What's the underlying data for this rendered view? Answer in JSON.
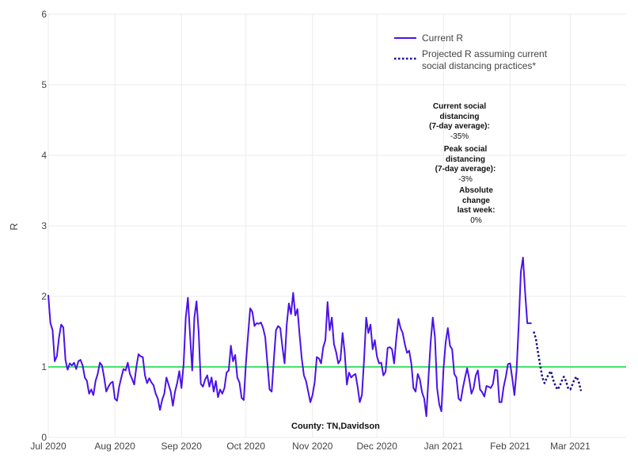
{
  "chart_data": {
    "type": "line",
    "xlabel": "",
    "ylabel": "R",
    "ylim": [
      0,
      6
    ],
    "xlim": [
      "2020-07-01",
      "2021-03-27"
    ],
    "y_ticks": [
      "0",
      "1",
      "2",
      "3",
      "4",
      "5",
      "6"
    ],
    "x_ticks": [
      {
        "date": "2020-07-01",
        "label": "Jul 2020"
      },
      {
        "date": "2020-08-01",
        "label": "Aug 2020"
      },
      {
        "date": "2020-09-01",
        "label": "Sep 2020"
      },
      {
        "date": "2020-10-01",
        "label": "Oct 2020"
      },
      {
        "date": "2020-11-01",
        "label": "Nov 2020"
      },
      {
        "date": "2020-12-01",
        "label": "Dec 2020"
      },
      {
        "date": "2021-01-01",
        "label": "Jan 2021"
      },
      {
        "date": "2021-02-01",
        "label": "Feb 2021"
      },
      {
        "date": "2021-03-01",
        "label": "Mar 2021"
      }
    ],
    "grid": true,
    "legend_position": "top-right",
    "reference_line": {
      "y": 1,
      "color": "#44e36a"
    },
    "series": [
      {
        "name": "Current R",
        "style": "solid",
        "color": "#4b12e8",
        "points": [
          [
            "2020-07-01",
            2.02
          ],
          [
            "2020-07-02",
            1.62
          ],
          [
            "2020-07-03",
            1.52
          ],
          [
            "2020-07-04",
            1.08
          ],
          [
            "2020-07-05",
            1.15
          ],
          [
            "2020-07-06",
            1.42
          ],
          [
            "2020-07-07",
            1.6
          ],
          [
            "2020-07-08",
            1.56
          ],
          [
            "2020-07-09",
            1.1
          ],
          [
            "2020-07-10",
            0.96
          ],
          [
            "2020-07-11",
            1.05
          ],
          [
            "2020-07-12",
            1.02
          ],
          [
            "2020-07-13",
            1.06
          ],
          [
            "2020-07-14",
            0.97
          ],
          [
            "2020-07-15",
            1.08
          ],
          [
            "2020-07-16",
            1.1
          ],
          [
            "2020-07-17",
            1.02
          ],
          [
            "2020-07-18",
            0.85
          ],
          [
            "2020-07-19",
            0.8
          ],
          [
            "2020-07-20",
            0.62
          ],
          [
            "2020-07-21",
            0.68
          ],
          [
            "2020-07-22",
            0.6
          ],
          [
            "2020-07-23",
            0.8
          ],
          [
            "2020-07-24",
            0.9
          ],
          [
            "2020-07-25",
            1.06
          ],
          [
            "2020-07-26",
            1.02
          ],
          [
            "2020-07-27",
            0.85
          ],
          [
            "2020-07-28",
            0.65
          ],
          [
            "2020-07-29",
            0.72
          ],
          [
            "2020-07-30",
            0.77
          ],
          [
            "2020-07-31",
            0.79
          ],
          [
            "2020-08-01",
            0.55
          ],
          [
            "2020-08-02",
            0.52
          ],
          [
            "2020-08-03",
            0.72
          ],
          [
            "2020-08-04",
            0.85
          ],
          [
            "2020-08-05",
            0.97
          ],
          [
            "2020-08-06",
            0.95
          ],
          [
            "2020-08-07",
            1.06
          ],
          [
            "2020-08-08",
            0.9
          ],
          [
            "2020-08-09",
            0.83
          ],
          [
            "2020-08-10",
            0.75
          ],
          [
            "2020-08-11",
            1.0
          ],
          [
            "2020-08-12",
            1.18
          ],
          [
            "2020-08-13",
            1.15
          ],
          [
            "2020-08-14",
            1.14
          ],
          [
            "2020-08-15",
            0.88
          ],
          [
            "2020-08-16",
            0.77
          ],
          [
            "2020-08-17",
            0.84
          ],
          [
            "2020-08-18",
            0.78
          ],
          [
            "2020-08-19",
            0.74
          ],
          [
            "2020-08-20",
            0.62
          ],
          [
            "2020-08-21",
            0.55
          ],
          [
            "2020-08-22",
            0.39
          ],
          [
            "2020-08-23",
            0.53
          ],
          [
            "2020-08-24",
            0.62
          ],
          [
            "2020-08-25",
            0.85
          ],
          [
            "2020-08-26",
            0.75
          ],
          [
            "2020-08-27",
            0.65
          ],
          [
            "2020-08-28",
            0.45
          ],
          [
            "2020-08-29",
            0.65
          ],
          [
            "2020-08-30",
            0.77
          ],
          [
            "2020-08-31",
            0.94
          ],
          [
            "2020-09-01",
            0.7
          ],
          [
            "2020-09-02",
            1.04
          ],
          [
            "2020-09-03",
            1.7
          ],
          [
            "2020-09-04",
            1.98
          ],
          [
            "2020-09-05",
            1.45
          ],
          [
            "2020-09-06",
            0.95
          ],
          [
            "2020-09-07",
            1.7
          ],
          [
            "2020-09-08",
            1.93
          ],
          [
            "2020-09-09",
            1.5
          ],
          [
            "2020-09-10",
            0.76
          ],
          [
            "2020-09-11",
            0.72
          ],
          [
            "2020-09-12",
            0.82
          ],
          [
            "2020-09-13",
            0.88
          ],
          [
            "2020-09-14",
            0.72
          ],
          [
            "2020-09-15",
            0.85
          ],
          [
            "2020-09-16",
            0.65
          ],
          [
            "2020-09-17",
            0.8
          ],
          [
            "2020-09-18",
            0.57
          ],
          [
            "2020-09-19",
            0.68
          ],
          [
            "2020-09-20",
            0.62
          ],
          [
            "2020-09-21",
            0.7
          ],
          [
            "2020-09-22",
            0.92
          ],
          [
            "2020-09-23",
            0.95
          ],
          [
            "2020-09-24",
            1.3
          ],
          [
            "2020-09-25",
            1.08
          ],
          [
            "2020-09-26",
            1.17
          ],
          [
            "2020-09-27",
            0.85
          ],
          [
            "2020-09-28",
            0.78
          ],
          [
            "2020-09-29",
            0.56
          ],
          [
            "2020-09-30",
            0.53
          ],
          [
            "2020-10-01",
            1.05
          ],
          [
            "2020-10-02",
            1.45
          ],
          [
            "2020-10-03",
            1.83
          ],
          [
            "2020-10-04",
            1.78
          ],
          [
            "2020-10-05",
            1.58
          ],
          [
            "2020-10-06",
            1.62
          ],
          [
            "2020-10-07",
            1.61
          ],
          [
            "2020-10-08",
            1.63
          ],
          [
            "2020-10-09",
            1.55
          ],
          [
            "2020-10-10",
            1.42
          ],
          [
            "2020-10-11",
            1.05
          ],
          [
            "2020-10-12",
            0.68
          ],
          [
            "2020-10-13",
            0.65
          ],
          [
            "2020-10-14",
            1.1
          ],
          [
            "2020-10-15",
            1.52
          ],
          [
            "2020-10-16",
            1.58
          ],
          [
            "2020-10-17",
            1.55
          ],
          [
            "2020-10-18",
            1.28
          ],
          [
            "2020-10-19",
            1.05
          ],
          [
            "2020-10-20",
            1.6
          ],
          [
            "2020-10-21",
            1.9
          ],
          [
            "2020-10-22",
            1.75
          ],
          [
            "2020-10-23",
            2.05
          ],
          [
            "2020-10-24",
            1.73
          ],
          [
            "2020-10-25",
            1.82
          ],
          [
            "2020-10-26",
            1.45
          ],
          [
            "2020-10-27",
            1.12
          ],
          [
            "2020-10-28",
            0.88
          ],
          [
            "2020-10-29",
            0.8
          ],
          [
            "2020-10-30",
            0.65
          ],
          [
            "2020-10-31",
            0.5
          ],
          [
            "2020-11-01",
            0.6
          ],
          [
            "2020-11-02",
            0.78
          ],
          [
            "2020-11-03",
            1.14
          ],
          [
            "2020-11-04",
            1.12
          ],
          [
            "2020-11-05",
            1.05
          ],
          [
            "2020-11-06",
            1.28
          ],
          [
            "2020-11-07",
            1.38
          ],
          [
            "2020-11-08",
            1.92
          ],
          [
            "2020-11-09",
            1.52
          ],
          [
            "2020-11-10",
            1.7
          ],
          [
            "2020-11-11",
            1.32
          ],
          [
            "2020-11-12",
            1.21
          ],
          [
            "2020-11-13",
            1.05
          ],
          [
            "2020-11-14",
            1.1
          ],
          [
            "2020-11-15",
            1.48
          ],
          [
            "2020-11-16",
            1.2
          ],
          [
            "2020-11-17",
            0.75
          ],
          [
            "2020-11-18",
            0.92
          ],
          [
            "2020-11-19",
            0.85
          ],
          [
            "2020-11-20",
            0.88
          ],
          [
            "2020-11-21",
            0.9
          ],
          [
            "2020-11-22",
            0.72
          ],
          [
            "2020-11-23",
            0.5
          ],
          [
            "2020-11-24",
            0.6
          ],
          [
            "2020-11-25",
            1.1
          ],
          [
            "2020-11-26",
            1.7
          ],
          [
            "2020-11-27",
            1.48
          ],
          [
            "2020-11-28",
            1.6
          ],
          [
            "2020-11-29",
            1.25
          ],
          [
            "2020-11-30",
            1.38
          ],
          [
            "2020-12-01",
            1.15
          ],
          [
            "2020-12-02",
            1.05
          ],
          [
            "2020-12-03",
            1.06
          ],
          [
            "2020-12-04",
            0.88
          ],
          [
            "2020-12-05",
            0.93
          ],
          [
            "2020-12-06",
            1.27
          ],
          [
            "2020-12-07",
            1.28
          ],
          [
            "2020-12-08",
            1.25
          ],
          [
            "2020-12-09",
            1.05
          ],
          [
            "2020-12-10",
            1.4
          ],
          [
            "2020-12-11",
            1.68
          ],
          [
            "2020-12-12",
            1.55
          ],
          [
            "2020-12-13",
            1.48
          ],
          [
            "2020-12-14",
            1.32
          ],
          [
            "2020-12-15",
            1.2
          ],
          [
            "2020-12-16",
            1.23
          ],
          [
            "2020-12-17",
            1.05
          ],
          [
            "2020-12-18",
            0.7
          ],
          [
            "2020-12-19",
            0.65
          ],
          [
            "2020-12-20",
            0.9
          ],
          [
            "2020-12-21",
            0.82
          ],
          [
            "2020-12-22",
            0.64
          ],
          [
            "2020-12-23",
            0.55
          ],
          [
            "2020-12-24",
            0.3
          ],
          [
            "2020-12-25",
            0.85
          ],
          [
            "2020-12-26",
            1.35
          ],
          [
            "2020-12-27",
            1.7
          ],
          [
            "2020-12-28",
            1.42
          ],
          [
            "2020-12-29",
            0.7
          ],
          [
            "2020-12-30",
            0.47
          ],
          [
            "2020-12-31",
            0.37
          ],
          [
            "2021-01-01",
            0.98
          ],
          [
            "2021-01-02",
            1.35
          ],
          [
            "2021-01-03",
            1.55
          ],
          [
            "2021-01-04",
            1.3
          ],
          [
            "2021-01-05",
            1.25
          ],
          [
            "2021-01-06",
            0.9
          ],
          [
            "2021-01-07",
            0.85
          ],
          [
            "2021-01-08",
            0.55
          ],
          [
            "2021-01-09",
            0.52
          ],
          [
            "2021-01-10",
            0.7
          ],
          [
            "2021-01-11",
            0.85
          ],
          [
            "2021-01-12",
            0.98
          ],
          [
            "2021-01-13",
            0.82
          ],
          [
            "2021-01-14",
            0.62
          ],
          [
            "2021-01-15",
            0.7
          ],
          [
            "2021-01-16",
            0.88
          ],
          [
            "2021-01-17",
            0.95
          ],
          [
            "2021-01-18",
            0.68
          ],
          [
            "2021-01-19",
            0.64
          ],
          [
            "2021-01-20",
            0.58
          ],
          [
            "2021-01-21",
            0.73
          ],
          [
            "2021-01-22",
            0.72
          ],
          [
            "2021-01-23",
            0.7
          ],
          [
            "2021-01-24",
            0.76
          ],
          [
            "2021-01-25",
            0.96
          ],
          [
            "2021-01-26",
            0.95
          ],
          [
            "2021-01-27",
            0.5
          ],
          [
            "2021-01-28",
            0.5
          ],
          [
            "2021-01-29",
            0.72
          ],
          [
            "2021-01-30",
            0.86
          ],
          [
            "2021-01-31",
            1.04
          ],
          [
            "2021-02-01",
            1.05
          ],
          [
            "2021-02-02",
            0.84
          ],
          [
            "2021-02-03",
            0.6
          ],
          [
            "2021-02-04",
            0.95
          ],
          [
            "2021-02-05",
            1.6
          ],
          [
            "2021-02-06",
            2.35
          ],
          [
            "2021-02-07",
            2.55
          ],
          [
            "2021-02-08",
            2.05
          ],
          [
            "2021-02-09",
            1.62
          ],
          [
            "2021-02-10",
            1.62
          ],
          [
            "2021-02-11",
            1.62
          ]
        ]
      },
      {
        "name": "Projected R assuming current social distancing practices*",
        "style": "dotted",
        "color": "#1a0d8c",
        "points": [
          [
            "2021-02-12",
            1.5
          ],
          [
            "2021-02-13",
            1.4
          ],
          [
            "2021-02-14",
            1.2
          ],
          [
            "2021-02-15",
            1.02
          ],
          [
            "2021-02-16",
            0.85
          ],
          [
            "2021-02-17",
            0.77
          ],
          [
            "2021-02-18",
            0.84
          ],
          [
            "2021-02-19",
            0.9
          ],
          [
            "2021-02-20",
            0.94
          ],
          [
            "2021-02-21",
            0.82
          ],
          [
            "2021-02-22",
            0.74
          ],
          [
            "2021-02-23",
            0.68
          ],
          [
            "2021-02-24",
            0.72
          ],
          [
            "2021-02-25",
            0.8
          ],
          [
            "2021-02-26",
            0.86
          ],
          [
            "2021-02-27",
            0.8
          ],
          [
            "2021-02-28",
            0.7
          ],
          [
            "2021-03-01",
            0.68
          ],
          [
            "2021-03-02",
            0.75
          ],
          [
            "2021-03-03",
            0.83
          ],
          [
            "2021-03-04",
            0.86
          ],
          [
            "2021-03-05",
            0.78
          ],
          [
            "2021-03-06",
            0.66
          ]
        ]
      }
    ],
    "annotations": [
      {
        "title_lines": [
          "Current social distancing",
          "(7-day average):"
        ],
        "value": "-35%",
        "bg": "#a6d8e8"
      },
      {
        "title_lines": [
          "Peak social distancing",
          "(7-day average):"
        ],
        "value": "-3%",
        "bg": "#5cf58c"
      },
      {
        "title_lines": [
          "Absolute change",
          "last week:"
        ],
        "value": "0%",
        "bg": "#ffd700"
      }
    ],
    "footer_label": "County: TN,Davidson"
  }
}
